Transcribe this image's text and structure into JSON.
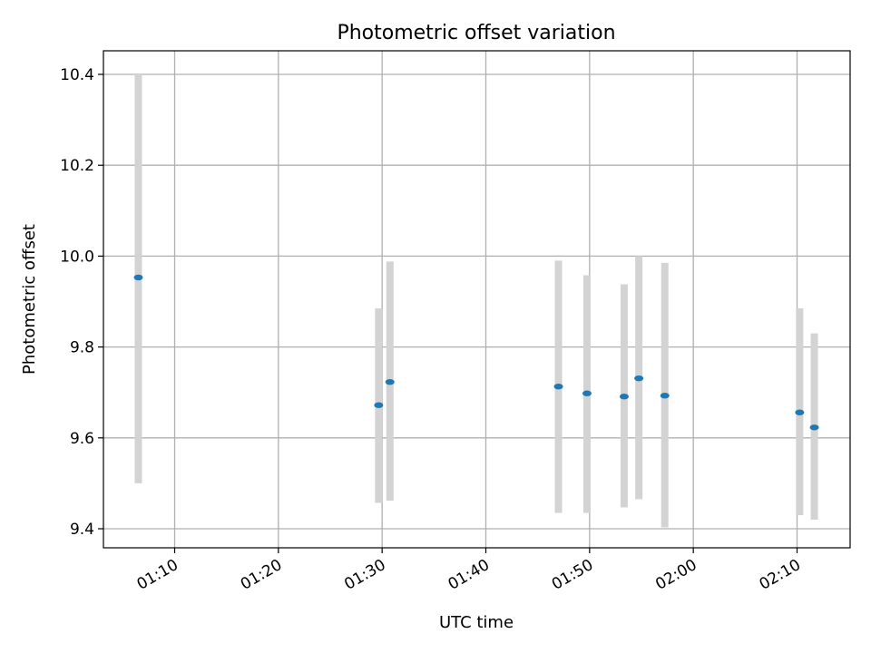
{
  "chart_data": {
    "type": "scatter",
    "title": "Photometric offset variation",
    "xlabel": "UTC time",
    "ylabel": "Photometric offset",
    "x_tick_labels": [
      "01:10",
      "01:20",
      "01:30",
      "01:40",
      "01:50",
      "02:00",
      "02:10"
    ],
    "y_tick_labels": [
      "9.4",
      "9.6",
      "9.8",
      "10.0",
      "10.2",
      "10.4"
    ],
    "grid": true,
    "points": [
      {
        "time": "01:06:30",
        "value": 9.953,
        "low": 9.5,
        "high": 10.4
      },
      {
        "time": "01:29:40",
        "value": 9.672,
        "low": 9.457,
        "high": 9.885
      },
      {
        "time": "01:30:45",
        "value": 9.723,
        "low": 9.462,
        "high": 9.988
      },
      {
        "time": "01:47:00",
        "value": 9.713,
        "low": 9.435,
        "high": 9.99
      },
      {
        "time": "01:49:45",
        "value": 9.698,
        "low": 9.435,
        "high": 9.958
      },
      {
        "time": "01:53:20",
        "value": 9.691,
        "low": 9.447,
        "high": 9.938
      },
      {
        "time": "01:54:45",
        "value": 9.731,
        "low": 9.465,
        "high": 10.0
      },
      {
        "time": "01:57:15",
        "value": 9.693,
        "low": 9.403,
        "high": 9.985
      },
      {
        "time": "02:10:15",
        "value": 9.656,
        "low": 9.43,
        "high": 9.885
      },
      {
        "time": "02:11:40",
        "value": 9.623,
        "low": 9.42,
        "high": 9.83
      }
    ],
    "colors": {
      "point": "#1f77b4",
      "errorbar": "#d3d3d3",
      "grid": "#b0b0b0",
      "axes": "#000000"
    }
  }
}
